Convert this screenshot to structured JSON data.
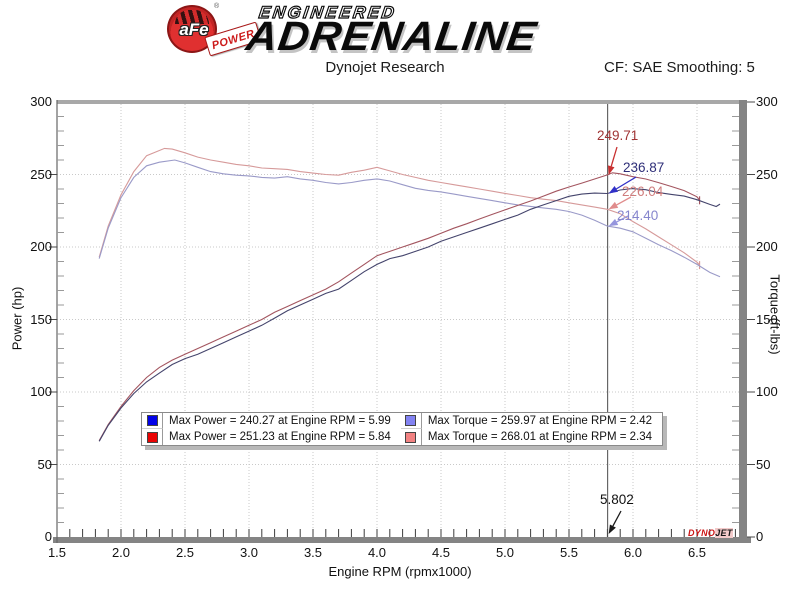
{
  "header": {
    "logo": {
      "afe": "aFe",
      "reg": "®",
      "power": "POWER",
      "line1": "ENGINEERED",
      "line2": "ADRENALINE"
    },
    "title": "Dynojet Research",
    "smoothing": "CF: SAE Smoothing: 5"
  },
  "legend": {
    "entries": [
      {
        "swatch": "#0202e8",
        "text": "Max Power = 240.27 at Engine RPM = 5.99"
      },
      {
        "swatch": "#ea0404",
        "text": "Max Power = 251.23 at Engine RPM = 5.84"
      },
      {
        "swatch": "#8282f2",
        "text": "Max Torque = 259.97 at Engine RPM = 2.42"
      },
      {
        "swatch": "#f28282",
        "text": "Max Torque = 268.01 at Engine RPM = 2.34"
      }
    ]
  },
  "watermark": {
    "part1": "DYNO",
    "part2": "JET"
  },
  "chart_data": {
    "type": "line",
    "title": "Dynojet Research",
    "xlabel": "Engine RPM (rpmx1000)",
    "ylabel_left": "Power (hp)",
    "ylabel_right": "Torque (ft-lbs)",
    "xlim": [
      1.5,
      6.85
    ],
    "ylim": [
      0,
      300
    ],
    "x_major_ticks": [
      1.5,
      2.0,
      2.5,
      3.0,
      3.5,
      4.0,
      4.5,
      5.0,
      5.5,
      6.0,
      6.5
    ],
    "x_minor_step": 0.1,
    "y_major_ticks": [
      0,
      50,
      100,
      150,
      200,
      250,
      300
    ],
    "y_minor_step": 10,
    "grid": true,
    "cursor_rpm": 5.802,
    "cursor_label": "5.802",
    "max_values": {
      "power_run1": {
        "value": 240.27,
        "rpm": 5.99
      },
      "power_run2": {
        "value": 251.23,
        "rpm": 5.84
      },
      "torque_run1": {
        "value": 259.97,
        "rpm": 2.42
      },
      "torque_run2": {
        "value": 268.01,
        "rpm": 2.34
      }
    },
    "annotations": [
      {
        "label": "249.71",
        "value": 249.71,
        "color": "#a03434",
        "arrow_color": "#c83030"
      },
      {
        "label": "236.87",
        "value": 236.87,
        "color": "#2e2e78",
        "arrow_color": "#3030c8"
      },
      {
        "label": "226.04",
        "value": 226.04,
        "color": "#cf7d7d",
        "arrow_color": "#e08c8c"
      },
      {
        "label": "214.40",
        "value": 214.4,
        "color": "#8585cd",
        "arrow_color": "#9595dd"
      }
    ],
    "series": [
      {
        "name": "torque-run2-red",
        "axis": "torque",
        "color": "#d69a9a",
        "end_tick": true,
        "points": [
          [
            1.83,
            193
          ],
          [
            1.9,
            214.5
          ],
          [
            2.0,
            236
          ],
          [
            2.1,
            252
          ],
          [
            2.2,
            263
          ],
          [
            2.34,
            268
          ],
          [
            2.4,
            267.5
          ],
          [
            2.5,
            265
          ],
          [
            2.6,
            262
          ],
          [
            2.7,
            260
          ],
          [
            2.8,
            258.5
          ],
          [
            2.9,
            257
          ],
          [
            3.0,
            256
          ],
          [
            3.1,
            254.5
          ],
          [
            3.2,
            254
          ],
          [
            3.3,
            253.5
          ],
          [
            3.4,
            252
          ],
          [
            3.5,
            251
          ],
          [
            3.6,
            250
          ],
          [
            3.7,
            249.5
          ],
          [
            3.8,
            251.5
          ],
          [
            3.9,
            253
          ],
          [
            4.0,
            255
          ],
          [
            4.1,
            252.5
          ],
          [
            4.2,
            250
          ],
          [
            4.3,
            248
          ],
          [
            4.4,
            246
          ],
          [
            4.5,
            244.5
          ],
          [
            4.6,
            243
          ],
          [
            4.7,
            241.5
          ],
          [
            4.8,
            240
          ],
          [
            4.9,
            238.5
          ],
          [
            5.0,
            237
          ],
          [
            5.1,
            235.5
          ],
          [
            5.2,
            234
          ],
          [
            5.3,
            233
          ],
          [
            5.4,
            232
          ],
          [
            5.5,
            230.5
          ],
          [
            5.6,
            229
          ],
          [
            5.7,
            227.5
          ],
          [
            5.8,
            226
          ],
          [
            5.9,
            223
          ],
          [
            6.0,
            217.5
          ],
          [
            6.1,
            212.5
          ],
          [
            6.2,
            207
          ],
          [
            6.3,
            201.5
          ],
          [
            6.4,
            196
          ],
          [
            6.5,
            189.5
          ],
          [
            6.52,
            187.5
          ]
        ]
      },
      {
        "name": "torque-run1-blue",
        "axis": "torque",
        "color": "#9a9ac8",
        "end_tick": false,
        "points": [
          [
            1.83,
            192
          ],
          [
            1.9,
            213
          ],
          [
            2.0,
            234
          ],
          [
            2.1,
            248
          ],
          [
            2.2,
            256
          ],
          [
            2.3,
            258.5
          ],
          [
            2.42,
            260
          ],
          [
            2.5,
            258
          ],
          [
            2.6,
            255
          ],
          [
            2.7,
            252
          ],
          [
            2.8,
            250.5
          ],
          [
            2.9,
            249.5
          ],
          [
            3.0,
            249
          ],
          [
            3.1,
            248
          ],
          [
            3.2,
            247.5
          ],
          [
            3.3,
            248.5
          ],
          [
            3.4,
            247
          ],
          [
            3.5,
            246
          ],
          [
            3.6,
            244.5
          ],
          [
            3.7,
            243.5
          ],
          [
            3.8,
            244.5
          ],
          [
            3.9,
            246
          ],
          [
            4.0,
            247
          ],
          [
            4.1,
            245.5
          ],
          [
            4.2,
            243
          ],
          [
            4.3,
            240.5
          ],
          [
            4.4,
            239
          ],
          [
            4.5,
            238
          ],
          [
            4.6,
            236.5
          ],
          [
            4.7,
            235
          ],
          [
            4.8,
            233.5
          ],
          [
            4.9,
            232
          ],
          [
            5.0,
            230.5
          ],
          [
            5.1,
            229
          ],
          [
            5.2,
            228
          ],
          [
            5.3,
            227
          ],
          [
            5.4,
            226
          ],
          [
            5.5,
            224.5
          ],
          [
            5.6,
            222
          ],
          [
            5.7,
            218.5
          ],
          [
            5.8,
            214.4
          ],
          [
            5.9,
            213
          ],
          [
            6.0,
            210.5
          ],
          [
            6.1,
            206
          ],
          [
            6.2,
            201.5
          ],
          [
            6.3,
            197.5
          ],
          [
            6.4,
            193
          ],
          [
            6.5,
            188
          ],
          [
            6.6,
            182.5
          ],
          [
            6.68,
            179.5
          ]
        ]
      },
      {
        "name": "power-run2-red",
        "axis": "power",
        "color": "#a3555f",
        "end_tick": true,
        "points": [
          [
            1.83,
            66.5
          ],
          [
            1.9,
            77.5
          ],
          [
            2.0,
            90
          ],
          [
            2.1,
            101
          ],
          [
            2.2,
            110
          ],
          [
            2.3,
            117
          ],
          [
            2.4,
            122
          ],
          [
            2.5,
            126
          ],
          [
            2.6,
            130
          ],
          [
            2.7,
            134
          ],
          [
            2.8,
            138
          ],
          [
            2.9,
            142
          ],
          [
            3.0,
            146
          ],
          [
            3.1,
            150
          ],
          [
            3.2,
            155
          ],
          [
            3.3,
            159
          ],
          [
            3.4,
            163
          ],
          [
            3.5,
            167
          ],
          [
            3.6,
            171
          ],
          [
            3.7,
            176
          ],
          [
            3.8,
            182
          ],
          [
            3.9,
            188
          ],
          [
            4.0,
            194
          ],
          [
            4.1,
            197
          ],
          [
            4.2,
            200
          ],
          [
            4.3,
            203
          ],
          [
            4.4,
            206
          ],
          [
            4.5,
            209.5
          ],
          [
            4.6,
            213
          ],
          [
            4.7,
            216
          ],
          [
            4.8,
            219.3
          ],
          [
            4.9,
            222.5
          ],
          [
            5.0,
            225.6
          ],
          [
            5.1,
            228.7
          ],
          [
            5.2,
            231.7
          ],
          [
            5.3,
            235.1
          ],
          [
            5.4,
            238.5
          ],
          [
            5.5,
            241.4
          ],
          [
            5.6,
            244.1
          ],
          [
            5.7,
            246.9
          ],
          [
            5.8,
            249.7
          ],
          [
            5.84,
            251.2
          ],
          [
            5.9,
            250.5
          ],
          [
            6.0,
            248.5
          ],
          [
            6.1,
            246.9
          ],
          [
            6.2,
            244.4
          ],
          [
            6.3,
            241.7
          ],
          [
            6.4,
            238.9
          ],
          [
            6.5,
            234.6
          ],
          [
            6.52,
            232.2
          ]
        ]
      },
      {
        "name": "power-run1-blue",
        "axis": "power",
        "color": "#44446c",
        "end_tick": false,
        "points": [
          [
            1.83,
            66
          ],
          [
            1.9,
            77
          ],
          [
            2.0,
            89
          ],
          [
            2.1,
            99
          ],
          [
            2.2,
            107
          ],
          [
            2.3,
            113
          ],
          [
            2.4,
            119
          ],
          [
            2.5,
            123
          ],
          [
            2.6,
            126
          ],
          [
            2.7,
            130
          ],
          [
            2.8,
            134
          ],
          [
            2.9,
            138
          ],
          [
            3.0,
            142
          ],
          [
            3.1,
            146
          ],
          [
            3.2,
            151
          ],
          [
            3.3,
            156
          ],
          [
            3.4,
            160
          ],
          [
            3.5,
            164
          ],
          [
            3.6,
            168
          ],
          [
            3.7,
            171
          ],
          [
            3.8,
            177
          ],
          [
            3.9,
            183
          ],
          [
            4.0,
            188
          ],
          [
            4.1,
            192
          ],
          [
            4.2,
            194
          ],
          [
            4.3,
            197
          ],
          [
            4.4,
            200
          ],
          [
            4.5,
            204
          ],
          [
            4.6,
            207
          ],
          [
            4.7,
            210
          ],
          [
            4.8,
            213
          ],
          [
            4.9,
            216
          ],
          [
            5.0,
            219
          ],
          [
            5.1,
            222
          ],
          [
            5.2,
            226
          ],
          [
            5.3,
            229
          ],
          [
            5.4,
            232
          ],
          [
            5.5,
            235
          ],
          [
            5.6,
            236.5
          ],
          [
            5.7,
            237.2
          ],
          [
            5.8,
            236.9
          ],
          [
            5.9,
            239.3
          ],
          [
            5.99,
            240.3
          ],
          [
            6.1,
            239.5
          ],
          [
            6.2,
            237.5
          ],
          [
            6.3,
            236.3
          ],
          [
            6.4,
            235.1
          ],
          [
            6.5,
            232.6
          ],
          [
            6.6,
            229.4
          ],
          [
            6.65,
            227.9
          ],
          [
            6.68,
            229.6
          ]
        ]
      }
    ]
  }
}
